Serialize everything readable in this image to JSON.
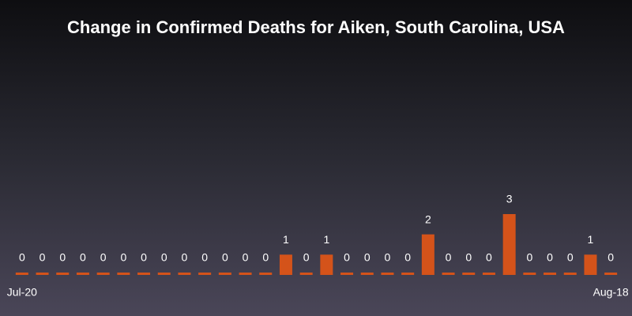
{
  "chart_data": {
    "type": "bar",
    "title": "Change in Confirmed Deaths for Aiken, South Carolina, USA",
    "categories": [
      "Jul-20",
      null,
      null,
      null,
      null,
      null,
      null,
      null,
      null,
      null,
      null,
      null,
      null,
      null,
      null,
      null,
      null,
      null,
      null,
      null,
      null,
      null,
      null,
      null,
      null,
      null,
      null,
      null,
      null,
      "Aug-18"
    ],
    "values": [
      0,
      0,
      0,
      0,
      0,
      0,
      0,
      0,
      0,
      0,
      0,
      0,
      0,
      1,
      0,
      1,
      0,
      0,
      0,
      0,
      2,
      0,
      0,
      0,
      3,
      0,
      0,
      0,
      1,
      0
    ],
    "color": "#d4531a"
  }
}
